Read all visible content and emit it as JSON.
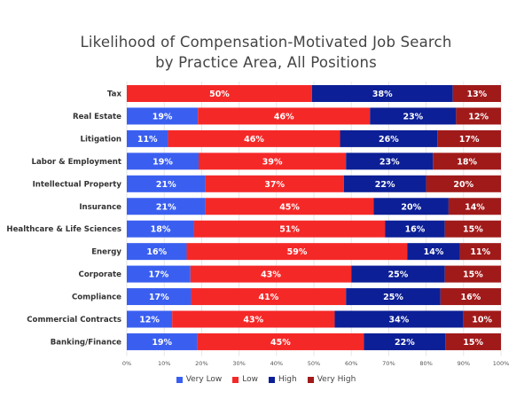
{
  "chart_data": {
    "type": "bar",
    "orientation": "horizontal",
    "stacked": true,
    "title": "Likelihood of Compensation-Motivated Job Search",
    "subtitle": "by Practice Area, All Positions",
    "categories": [
      "Tax",
      "Real Estate",
      "Litigation",
      "Labor & Employment",
      "Intellectual Property",
      "Insurance",
      "Healthcare & Life Sciences",
      "Energy",
      "Corporate",
      "Compliance",
      "Commercial Contracts",
      "Banking/Finance"
    ],
    "series": [
      {
        "name": "Very Low",
        "color": "#3a5ff0",
        "values": [
          0,
          19,
          11,
          19,
          21,
          21,
          18,
          16,
          17,
          17,
          12,
          19
        ]
      },
      {
        "name": "Low",
        "color": "#f52828",
        "values": [
          50,
          46,
          46,
          39,
          37,
          45,
          51,
          59,
          43,
          41,
          43,
          45
        ]
      },
      {
        "name": "High",
        "color": "#0c1f96",
        "values": [
          38,
          23,
          26,
          23,
          22,
          20,
          16,
          14,
          25,
          25,
          34,
          22
        ]
      },
      {
        "name": "Very High",
        "color": "#a01a1a",
        "values": [
          13,
          12,
          17,
          18,
          20,
          14,
          15,
          11,
          15,
          16,
          10,
          15
        ]
      }
    ],
    "xlim": [
      0,
      100
    ],
    "x_ticks": [
      "0%",
      "10%",
      "20%",
      "30%",
      "40%",
      "50%",
      "60%",
      "70%",
      "80%",
      "90%",
      "100%"
    ],
    "grid": true,
    "legend_position": "bottom"
  }
}
